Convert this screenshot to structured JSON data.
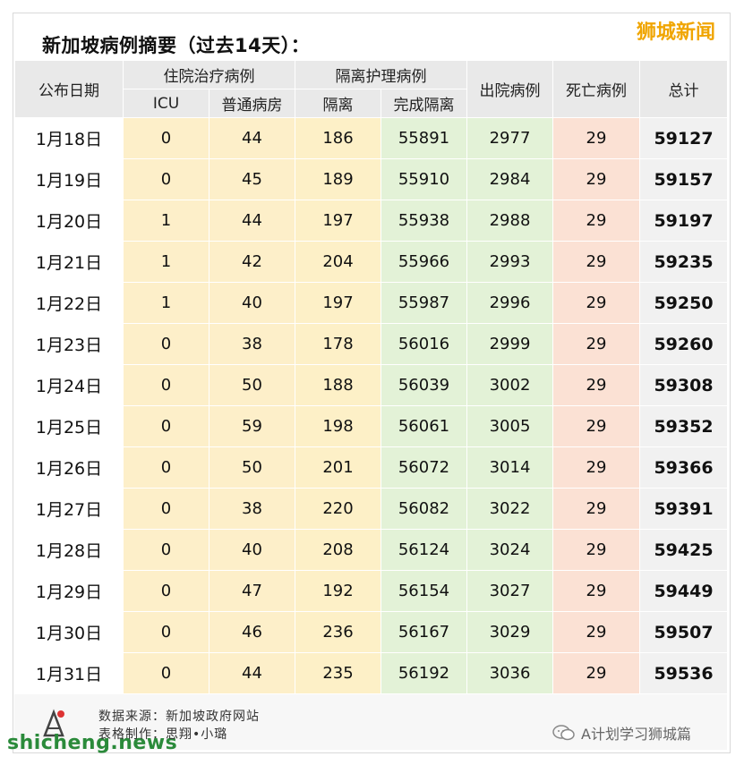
{
  "title": "新加坡病例摘要（过去14天）：",
  "brand": "狮城新闻",
  "headers": {
    "date": "公布日期",
    "hospital": "住院治疗病例",
    "icu": "ICU",
    "ward": "普通病房",
    "isolation": "隔离护理病例",
    "iso": "隔离",
    "done": "完成隔离",
    "discharged": "出院病例",
    "deaths": "死亡病例",
    "total": "总计"
  },
  "rows": [
    [
      "1月18日",
      "0",
      "44",
      "186",
      "55891",
      "2977",
      "29",
      "59127"
    ],
    [
      "1月19日",
      "0",
      "45",
      "189",
      "55910",
      "2984",
      "29",
      "59157"
    ],
    [
      "1月20日",
      "1",
      "44",
      "197",
      "55938",
      "2988",
      "29",
      "59197"
    ],
    [
      "1月21日",
      "1",
      "42",
      "204",
      "55966",
      "2993",
      "29",
      "59235"
    ],
    [
      "1月22日",
      "1",
      "40",
      "197",
      "55987",
      "2996",
      "29",
      "59250"
    ],
    [
      "1月23日",
      "0",
      "38",
      "178",
      "56016",
      "2999",
      "29",
      "59260"
    ],
    [
      "1月24日",
      "0",
      "50",
      "188",
      "56039",
      "3002",
      "29",
      "59308"
    ],
    [
      "1月25日",
      "0",
      "59",
      "198",
      "56061",
      "3005",
      "29",
      "59352"
    ],
    [
      "1月26日",
      "0",
      "50",
      "201",
      "56072",
      "3014",
      "29",
      "59366"
    ],
    [
      "1月27日",
      "0",
      "38",
      "220",
      "56082",
      "3022",
      "29",
      "59391"
    ],
    [
      "1月28日",
      "0",
      "40",
      "208",
      "56124",
      "3024",
      "29",
      "59425"
    ],
    [
      "1月29日",
      "0",
      "47",
      "192",
      "56154",
      "3027",
      "29",
      "59449"
    ],
    [
      "1月30日",
      "0",
      "46",
      "236",
      "56167",
      "3029",
      "29",
      "59507"
    ],
    [
      "1月31日",
      "0",
      "44",
      "235",
      "56192",
      "3036",
      "29",
      "59536"
    ]
  ],
  "footer": {
    "source": "数据来源：新加坡政府网站",
    "made_by": "表格制作：思翔•小璐",
    "site": "shicheng.news",
    "wechat": "A计划学习狮城篇"
  },
  "colors": {
    "hospital": "#fdefc9",
    "isolation": "#e3f2d7",
    "deaths": "#fbe1d4",
    "total": "#f1f1f1",
    "brand": "#f0a500",
    "site": "#2a8a3a"
  }
}
